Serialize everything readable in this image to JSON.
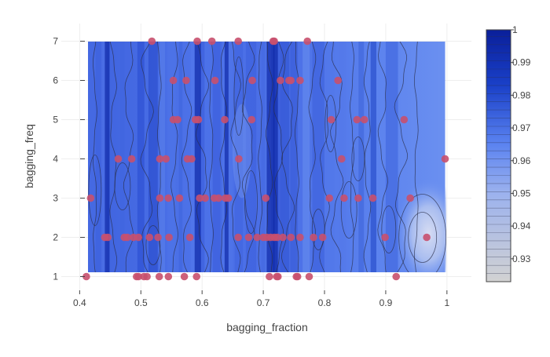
{
  "chart_data": {
    "type": "contour",
    "title": "",
    "xlabel": "bagging_fraction",
    "ylabel": "bagging_freq",
    "xlim": [
      0.37,
      1.04
    ],
    "ylim": [
      0.65,
      7.45
    ],
    "x_ticks": [
      {
        "value": 0.4,
        "label": "0.4"
      },
      {
        "value": 0.5,
        "label": "0.5"
      },
      {
        "value": 0.6,
        "label": "0.6"
      },
      {
        "value": 0.7,
        "label": "0.7"
      },
      {
        "value": 0.8,
        "label": "0.8"
      },
      {
        "value": 0.9,
        "label": "0.9"
      },
      {
        "value": 1.0,
        "label": "1"
      }
    ],
    "y_ticks": [
      {
        "value": 1,
        "label": "1"
      },
      {
        "value": 2,
        "label": "2"
      },
      {
        "value": 3,
        "label": "3"
      },
      {
        "value": 4,
        "label": "4"
      },
      {
        "value": 5,
        "label": "5"
      },
      {
        "value": 6,
        "label": "6"
      },
      {
        "value": 7,
        "label": "7"
      }
    ],
    "grid": true,
    "contour_domain": {
      "x": [
        0.41,
        0.997
      ],
      "y": [
        1,
        7
      ]
    },
    "colorbar": {
      "range": [
        0.923,
        1.0
      ],
      "ticks": [
        {
          "value": 1.0,
          "label": "1"
        },
        {
          "value": 0.99,
          "label": "0.99"
        },
        {
          "value": 0.98,
          "label": "0.98"
        },
        {
          "value": 0.97,
          "label": "0.97"
        },
        {
          "value": 0.96,
          "label": "0.96"
        },
        {
          "value": 0.95,
          "label": "0.95"
        },
        {
          "value": 0.94,
          "label": "0.94"
        },
        {
          "value": 0.93,
          "label": "0.93"
        }
      ],
      "colors": [
        "#d2d2d2",
        "#5a82f0",
        "#1233b4",
        "#0a1f9a"
      ]
    },
    "point_color": "#c8506e",
    "points": [
      [
        0.518,
        7
      ],
      [
        0.592,
        7
      ],
      [
        0.616,
        7
      ],
      [
        0.659,
        7
      ],
      [
        0.716,
        7
      ],
      [
        0.718,
        7
      ],
      [
        0.772,
        7
      ],
      [
        0.553,
        6
      ],
      [
        0.574,
        6
      ],
      [
        0.621,
        6
      ],
      [
        0.682,
        6
      ],
      [
        0.728,
        6
      ],
      [
        0.742,
        6
      ],
      [
        0.745,
        6
      ],
      [
        0.76,
        6
      ],
      [
        0.822,
        6
      ],
      [
        0.553,
        5
      ],
      [
        0.56,
        5
      ],
      [
        0.589,
        5
      ],
      [
        0.594,
        5
      ],
      [
        0.637,
        5
      ],
      [
        0.681,
        5
      ],
      [
        0.811,
        5
      ],
      [
        0.853,
        5
      ],
      [
        0.865,
        5
      ],
      [
        0.93,
        5
      ],
      [
        0.463,
        4
      ],
      [
        0.485,
        4
      ],
      [
        0.531,
        4
      ],
      [
        0.541,
        4
      ],
      [
        0.576,
        4
      ],
      [
        0.583,
        4
      ],
      [
        0.66,
        4
      ],
      [
        0.828,
        4
      ],
      [
        0.997,
        4
      ],
      [
        0.418,
        3
      ],
      [
        0.531,
        3
      ],
      [
        0.545,
        3
      ],
      [
        0.563,
        3
      ],
      [
        0.596,
        3
      ],
      [
        0.605,
        3
      ],
      [
        0.62,
        3
      ],
      [
        0.627,
        3
      ],
      [
        0.638,
        3
      ],
      [
        0.643,
        3
      ],
      [
        0.704,
        3
      ],
      [
        0.808,
        3
      ],
      [
        0.832,
        3
      ],
      [
        0.855,
        3
      ],
      [
        0.879,
        3
      ],
      [
        0.94,
        3
      ],
      [
        0.441,
        2
      ],
      [
        0.446,
        2
      ],
      [
        0.473,
        2
      ],
      [
        0.478,
        2
      ],
      [
        0.488,
        2
      ],
      [
        0.496,
        2
      ],
      [
        0.514,
        2
      ],
      [
        0.528,
        2
      ],
      [
        0.546,
        2
      ],
      [
        0.58,
        2
      ],
      [
        0.659,
        2
      ],
      [
        0.676,
        2
      ],
      [
        0.69,
        2
      ],
      [
        0.7,
        2
      ],
      [
        0.706,
        2
      ],
      [
        0.712,
        2
      ],
      [
        0.718,
        2
      ],
      [
        0.723,
        2
      ],
      [
        0.732,
        2
      ],
      [
        0.745,
        2
      ],
      [
        0.76,
        2
      ],
      [
        0.782,
        2
      ],
      [
        0.797,
        2
      ],
      [
        0.899,
        2
      ],
      [
        0.967,
        2
      ],
      [
        0.411,
        1
      ],
      [
        0.493,
        1
      ],
      [
        0.496,
        1
      ],
      [
        0.505,
        1
      ],
      [
        0.51,
        1
      ],
      [
        0.53,
        1
      ],
      [
        0.545,
        1
      ],
      [
        0.571,
        1
      ],
      [
        0.591,
        1
      ],
      [
        0.71,
        1
      ],
      [
        0.722,
        1
      ],
      [
        0.724,
        1
      ],
      [
        0.754,
        1
      ],
      [
        0.756,
        1
      ],
      [
        0.775,
        1
      ],
      [
        0.917,
        1
      ]
    ]
  }
}
